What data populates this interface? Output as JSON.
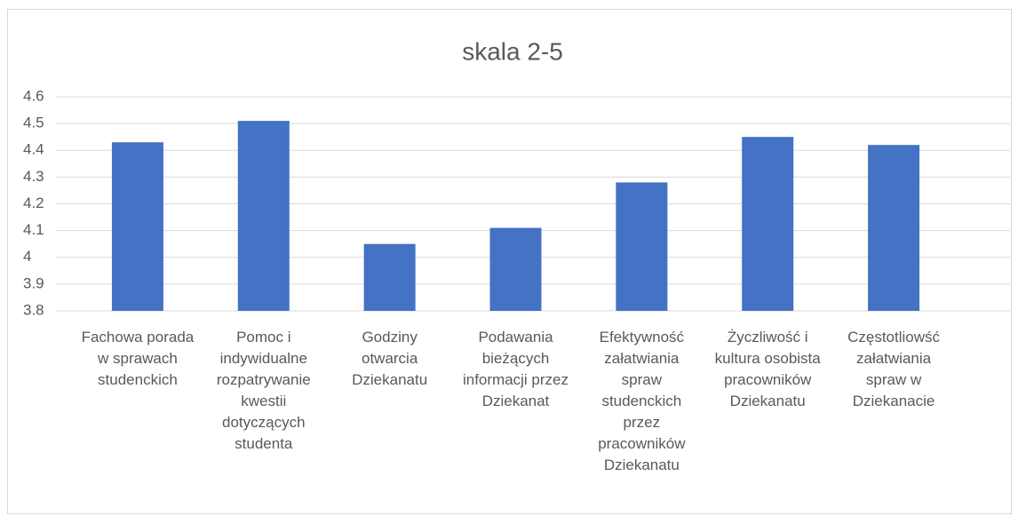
{
  "chart_data": {
    "type": "bar",
    "title": "skala 2-5",
    "categories": [
      "Fachowa porada w sprawach studenckich",
      "Pomoc i indywidualne rozpatrywanie kwestii dotyczących studenta",
      "Godziny otwarcia Dziekanatu",
      "Podawania bieżących informacji przez Dziekanat",
      "Efektywność załatwiania spraw studenckich przez pracowników Dziekanatu",
      "Życzliwość i kultura osobista pracowników Dziekanatu",
      "Częstotliowść załatwiania spraw w Dziekanacie"
    ],
    "values": [
      4.43,
      4.51,
      4.05,
      4.11,
      4.28,
      4.45,
      4.42
    ],
    "color": "#4472c4",
    "ylim": [
      3.8,
      4.6
    ],
    "yticks": [
      3.8,
      3.9,
      4,
      4.1,
      4.2,
      4.3,
      4.4,
      4.5,
      4.6
    ],
    "grid": true
  }
}
